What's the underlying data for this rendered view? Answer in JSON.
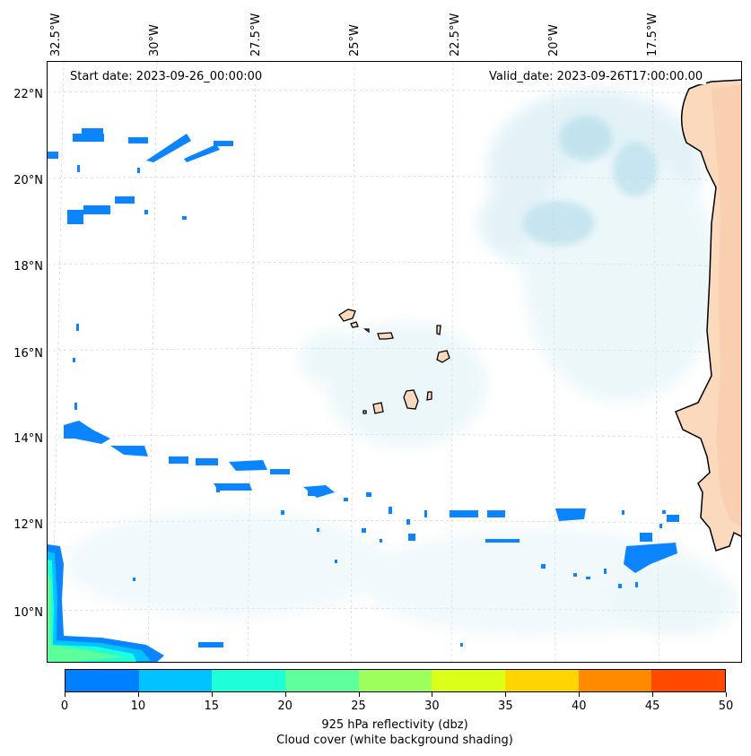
{
  "map": {
    "start_date_text": "Start date: 2023-09-26_00:00:00",
    "valid_date_text": "Valid_date: 2023-09-26T17:00:00.00",
    "lon_labels": [
      "32.5°W",
      "30°W",
      "27.5°W",
      "25°W",
      "22.5°W",
      "20°W",
      "17.5°W"
    ],
    "lat_labels": [
      "22°N",
      "20°N",
      "18°N",
      "16°N",
      "14°N",
      "12°N",
      "10°N"
    ],
    "land_color": "#fbd9bd",
    "cloud_color": "#a9d8e8",
    "radar_color": "#0a84ff"
  },
  "colorbar": {
    "ticks": [
      "0",
      "10",
      "15",
      "20",
      "25",
      "30",
      "35",
      "40",
      "45",
      "50"
    ],
    "colors": [
      "#0080ff",
      "#00c3ff",
      "#1effd8",
      "#5cff9a",
      "#9cff5c",
      "#dcff1a",
      "#ffd500",
      "#ff8a00",
      "#ff4a00"
    ],
    "title_line1": "925 hPa reflectivity (dbz)",
    "title_line2": "Cloud cover (white background shading)"
  }
}
